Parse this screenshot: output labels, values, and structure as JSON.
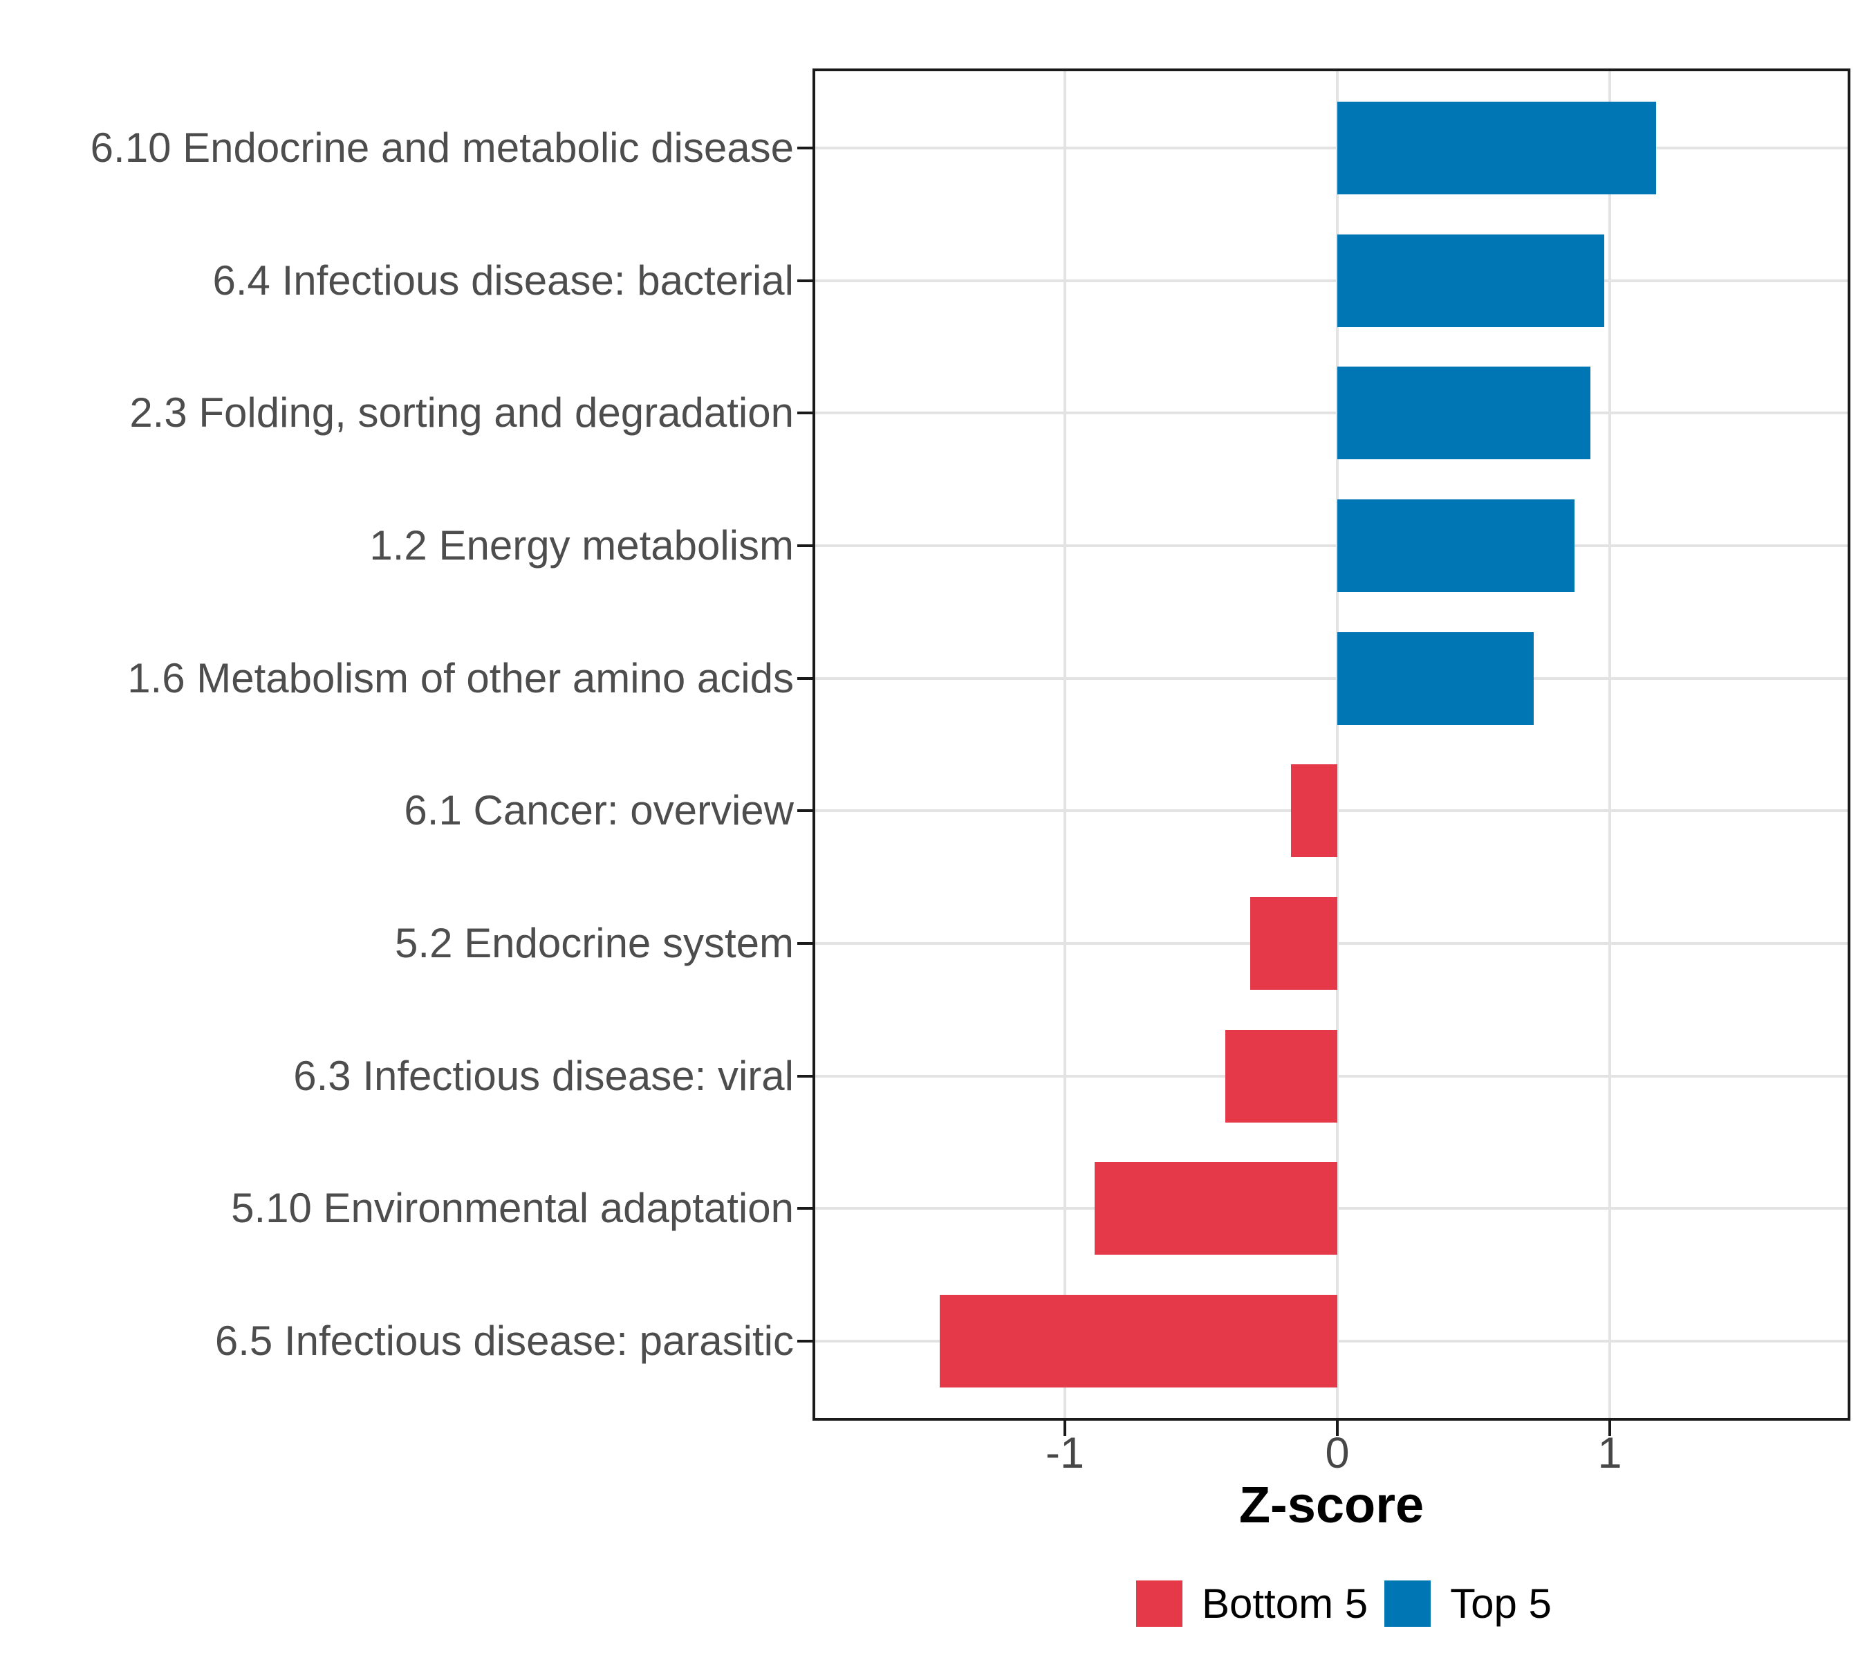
{
  "chart_data": {
    "type": "bar",
    "orientation": "horizontal",
    "xlabel": "Z-score",
    "x_ticks": [
      "-1",
      "0",
      "1"
    ],
    "x_tick_values": [
      -1,
      0,
      1
    ],
    "xlim": [
      -1.93,
      1.88
    ],
    "grid": true,
    "legend_position": "bottom",
    "categories": [
      "6.10 Endocrine and metabolic disease",
      "6.4 Infectious disease: bacterial",
      "2.3 Folding, sorting and degradation",
      "1.2 Energy metabolism",
      "1.6 Metabolism of other amino acids",
      "6.1 Cancer: overview",
      "5.2 Endocrine system",
      "6.3 Infectious disease: viral",
      "5.10 Environmental adaptation",
      "6.5 Infectious disease: parasitic"
    ],
    "values": [
      1.17,
      0.98,
      0.93,
      0.87,
      0.72,
      -0.17,
      -0.32,
      -0.41,
      -0.89,
      -1.46
    ],
    "groups": [
      "Top 5",
      "Top 5",
      "Top 5",
      "Top 5",
      "Top 5",
      "Bottom 5",
      "Bottom 5",
      "Bottom 5",
      "Bottom 5",
      "Bottom 5"
    ],
    "colors": {
      "Top 5": "#0076B5",
      "Bottom 5": "#E5394A"
    },
    "legend": [
      {
        "label": "Bottom 5",
        "color": "#E5394A"
      },
      {
        "label": "Top 5",
        "color": "#0076B5"
      }
    ]
  },
  "style": {
    "background": "#FFFFFF",
    "grid_color": "#E3E3E3",
    "axis_color": "#1A1A1A",
    "tick_label_color": "#474747",
    "category_label_color": "#4D4D4D"
  }
}
